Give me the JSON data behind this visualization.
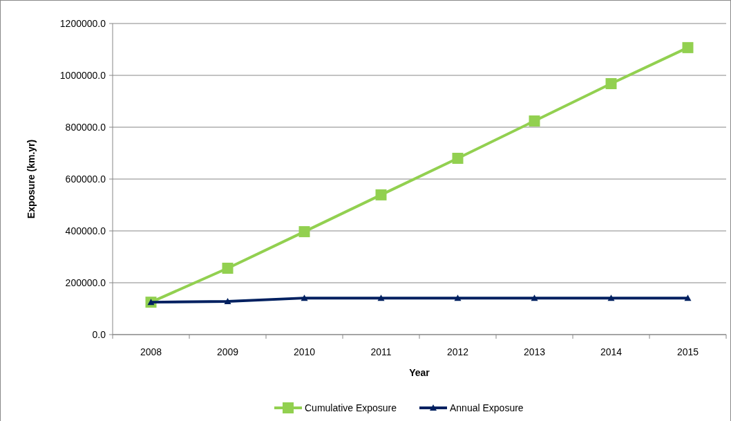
{
  "chart_data": {
    "type": "line",
    "xlabel": "Year",
    "ylabel": "Exposure (km.yr)",
    "categories": [
      "2008",
      "2009",
      "2010",
      "2011",
      "2012",
      "2013",
      "2014",
      "2015"
    ],
    "series": [
      {
        "name": "Cumulative Exposure",
        "color": "#92d050",
        "marker": "square",
        "values": [
          125000,
          256000,
          397000,
          539000,
          680000,
          824000,
          968000,
          1107000
        ]
      },
      {
        "name": "Annual Exposure",
        "color": "#002060",
        "marker": "triangle",
        "values": [
          125000,
          128000,
          141000,
          141000,
          141000,
          141000,
          141000,
          141000
        ]
      }
    ],
    "ylim": [
      0,
      1200000
    ],
    "yticks": [
      {
        "value": 0,
        "label": "0.0"
      },
      {
        "value": 200000,
        "label": "200000.0"
      },
      {
        "value": 400000,
        "label": "400000.0"
      },
      {
        "value": 600000,
        "label": "600000.0"
      },
      {
        "value": 800000,
        "label": "800000.0"
      },
      {
        "value": 1000000,
        "label": "1000000.0"
      },
      {
        "value": 1200000,
        "label": "1200000.0"
      }
    ],
    "grid": "y",
    "legend": "bottom"
  }
}
